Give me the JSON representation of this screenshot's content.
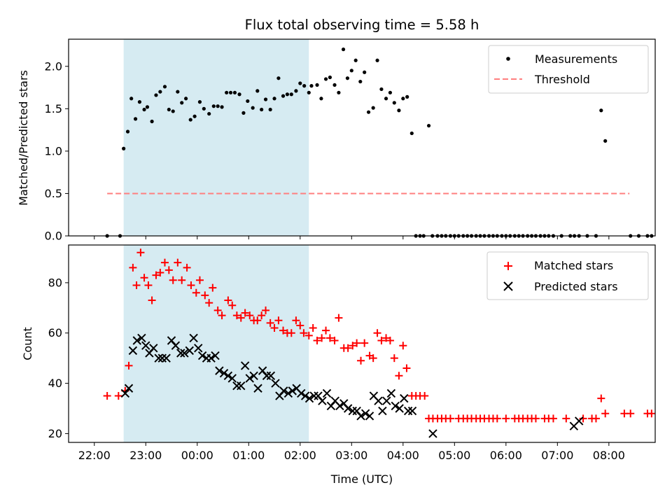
{
  "chart_data": [
    {
      "type": "scatter",
      "title": "Flux total observing time = 5.58 h",
      "xlabel": "",
      "ylabel": "Matched/Predicted stars",
      "x_unit": "hours since 22:00 UTC",
      "xlim": [
        -0.5,
        10.9
      ],
      "ylim": [
        0,
        2.32
      ],
      "yticks": [
        0.0,
        0.5,
        1.0,
        1.5,
        2.0
      ],
      "ytick_labels": [
        "0.0",
        "0.5",
        "1.0",
        "1.5",
        "2.0"
      ],
      "legend_position": "top-right",
      "shaded_span": [
        0.57,
        4.17
      ],
      "threshold": {
        "name": "Threshold",
        "value": 0.5,
        "x": [
          0.25,
          10.4
        ],
        "color": "#ff7f7f"
      },
      "series": [
        {
          "name": "Measurements",
          "color": "#000000",
          "x": [
            0.25,
            0.5,
            0.57,
            0.65,
            0.72,
            0.8,
            0.88,
            0.97,
            1.03,
            1.12,
            1.2,
            1.28,
            1.37,
            1.45,
            1.53,
            1.62,
            1.7,
            1.78,
            1.87,
            1.95,
            2.05,
            2.13,
            2.23,
            2.32,
            2.4,
            2.48,
            2.57,
            2.65,
            2.73,
            2.82,
            2.9,
            2.98,
            3.08,
            3.17,
            3.25,
            3.33,
            3.42,
            3.5,
            3.58,
            3.67,
            3.75,
            3.83,
            3.92,
            4.0,
            4.08,
            4.17,
            4.22,
            4.33,
            4.41,
            4.5,
            4.58,
            4.67,
            4.75,
            4.84,
            4.92,
            5.0,
            5.08,
            5.17,
            5.25,
            5.33,
            5.42,
            5.5,
            5.58,
            5.67,
            5.75,
            5.83,
            5.92,
            6.0,
            6.08,
            6.17,
            6.25,
            6.33,
            6.4,
            6.5,
            6.57,
            6.67,
            6.75,
            6.83,
            6.92,
            7.0,
            7.08,
            7.17,
            7.25,
            7.33,
            7.42,
            7.5,
            7.58,
            7.67,
            7.75,
            7.83,
            7.92,
            8.0,
            8.08,
            8.17,
            8.25,
            8.33,
            8.42,
            8.5,
            8.58,
            8.67,
            8.75,
            8.83,
            8.92,
            9.08,
            9.25,
            9.33,
            9.42,
            9.58,
            9.75,
            9.85,
            9.93,
            10.42,
            10.58,
            10.75,
            10.83
          ],
          "y": [
            0.0,
            0.0,
            1.03,
            1.23,
            1.62,
            1.38,
            1.58,
            1.49,
            1.52,
            1.35,
            1.66,
            1.7,
            1.76,
            1.49,
            1.47,
            1.7,
            1.57,
            1.62,
            1.37,
            1.41,
            1.58,
            1.5,
            1.44,
            1.53,
            1.53,
            1.52,
            1.69,
            1.69,
            1.69,
            1.67,
            1.45,
            1.59,
            1.51,
            1.71,
            1.49,
            1.61,
            1.49,
            1.62,
            1.86,
            1.65,
            1.67,
            1.67,
            1.71,
            1.8,
            1.77,
            1.69,
            1.77,
            1.78,
            1.62,
            1.85,
            1.87,
            1.78,
            1.69,
            2.2,
            1.86,
            1.95,
            2.07,
            1.82,
            1.93,
            1.46,
            1.51,
            2.07,
            1.73,
            1.62,
            1.69,
            1.57,
            1.48,
            1.62,
            1.64,
            1.21,
            0.0,
            0.0,
            0.0,
            1.3,
            0.0,
            0.0,
            0.0,
            0.0,
            0.0,
            0.0,
            0.0,
            0.0,
            0.0,
            0.0,
            0.0,
            0.0,
            0.0,
            0.0,
            0.0,
            0.0,
            0.0,
            0.0,
            0.0,
            0.0,
            0.0,
            0.0,
            0.0,
            0.0,
            0.0,
            0.0,
            0.0,
            0.0,
            0.0,
            0.0,
            0.0,
            0.0,
            0.0,
            0.0,
            0.0,
            1.48,
            1.12,
            0.0,
            0.0,
            0.0,
            0.0
          ]
        }
      ]
    },
    {
      "type": "scatter",
      "title": "",
      "xlabel": "Time (UTC)",
      "ylabel": "Count",
      "x_unit": "hours since 22:00 UTC",
      "xlim": [
        -0.5,
        10.9
      ],
      "ylim": [
        16.5,
        95
      ],
      "yticks": [
        20,
        40,
        60,
        80
      ],
      "ytick_labels": [
        "20",
        "40",
        "60",
        "80"
      ],
      "xticks": [
        0,
        1,
        2,
        3,
        4,
        5,
        6,
        7,
        8,
        9,
        10
      ],
      "xtick_labels": [
        "22:00",
        "23:00",
        "00:00",
        "01:00",
        "02:00",
        "03:00",
        "04:00",
        "05:00",
        "06:00",
        "07:00",
        "08:00"
      ],
      "legend_position": "top-right",
      "shaded_span": [
        0.57,
        4.17
      ],
      "series": [
        {
          "name": "Matched stars",
          "color": "#ff0000",
          "marker": "plus",
          "x": [
            0.25,
            0.47,
            0.6,
            0.67,
            0.75,
            0.82,
            0.9,
            0.97,
            1.05,
            1.12,
            1.2,
            1.28,
            1.37,
            1.45,
            1.53,
            1.62,
            1.7,
            1.8,
            1.88,
            1.98,
            2.05,
            2.15,
            2.23,
            2.3,
            2.4,
            2.48,
            2.6,
            2.68,
            2.77,
            2.85,
            2.93,
            3.02,
            3.1,
            3.17,
            3.25,
            3.33,
            3.42,
            3.5,
            3.58,
            3.67,
            3.75,
            3.83,
            3.92,
            4.0,
            4.07,
            4.17,
            4.25,
            4.33,
            4.42,
            4.5,
            4.58,
            4.67,
            4.75,
            4.85,
            4.93,
            5.02,
            5.1,
            5.18,
            5.25,
            5.35,
            5.42,
            5.5,
            5.58,
            5.67,
            5.75,
            5.83,
            5.92,
            6.0,
            6.07,
            6.17,
            6.25,
            6.33,
            6.42,
            6.5,
            6.58,
            6.67,
            6.75,
            6.83,
            6.92,
            7.08,
            7.17,
            7.25,
            7.33,
            7.42,
            7.5,
            7.58,
            7.67,
            7.75,
            7.83,
            8.0,
            8.17,
            8.25,
            8.33,
            8.42,
            8.5,
            8.58,
            8.75,
            8.83,
            8.92,
            9.17,
            9.5,
            9.67,
            9.75,
            9.85,
            9.93,
            10.3,
            10.42,
            10.75,
            10.83
          ],
          "y": [
            35,
            35,
            37,
            47,
            86,
            79,
            92,
            82,
            79,
            73,
            83,
            84,
            88,
            85,
            81,
            88,
            81,
            86,
            79,
            76,
            81,
            75,
            72,
            78,
            69,
            67,
            73,
            71,
            67,
            66,
            68,
            67,
            65,
            65,
            67,
            69,
            64,
            62,
            65,
            61,
            60,
            60,
            65,
            63,
            60,
            59,
            62,
            57,
            58,
            61,
            58,
            57,
            66,
            54,
            54,
            55,
            56,
            49,
            56,
            51,
            50,
            60,
            57,
            58,
            57,
            50,
            43,
            55,
            46,
            35,
            35,
            35,
            35,
            26,
            26,
            26,
            26,
            26,
            26,
            26,
            26,
            26,
            26,
            26,
            26,
            26,
            26,
            26,
            26,
            26,
            26,
            26,
            26,
            26,
            26,
            26,
            26,
            26,
            26,
            26,
            26,
            26,
            26,
            34,
            28,
            28,
            28,
            28,
            28
          ],
          "y_extra_note": ""
        },
        {
          "name": "Predicted stars",
          "color": "#000000",
          "marker": "x",
          "x": [
            0.6,
            0.67,
            0.75,
            0.83,
            0.92,
            1.0,
            1.07,
            1.15,
            1.25,
            1.32,
            1.4,
            1.5,
            1.58,
            1.68,
            1.75,
            1.85,
            1.93,
            2.02,
            2.1,
            2.18,
            2.27,
            2.35,
            2.43,
            2.52,
            2.6,
            2.68,
            2.77,
            2.85,
            2.93,
            3.02,
            3.1,
            3.18,
            3.27,
            3.35,
            3.43,
            3.52,
            3.6,
            3.68,
            3.77,
            3.85,
            3.93,
            4.02,
            4.1,
            4.18,
            4.27,
            4.35,
            4.43,
            4.52,
            4.6,
            4.68,
            4.77,
            4.85,
            4.93,
            5.02,
            5.1,
            5.18,
            5.27,
            5.35,
            5.43,
            5.52,
            5.6,
            5.68,
            5.77,
            5.85,
            5.93,
            6.02,
            6.1,
            6.18,
            6.58,
            9.32,
            9.42
          ],
          "y": [
            36,
            38,
            53,
            57,
            58,
            55,
            52,
            54,
            50,
            50,
            50,
            57,
            55,
            52,
            52,
            53,
            58,
            54,
            51,
            50,
            50,
            51,
            45,
            44,
            43,
            42,
            39,
            39,
            47,
            42,
            43,
            38,
            45,
            43,
            43,
            40,
            35,
            37,
            36,
            37,
            38,
            36,
            35,
            34,
            35,
            35,
            33,
            36,
            31,
            33,
            31,
            32,
            30,
            29,
            29,
            27,
            28,
            27,
            35,
            33,
            29,
            33,
            36,
            31,
            30,
            34,
            29,
            29,
            20,
            23,
            25
          ]
        }
      ]
    }
  ]
}
